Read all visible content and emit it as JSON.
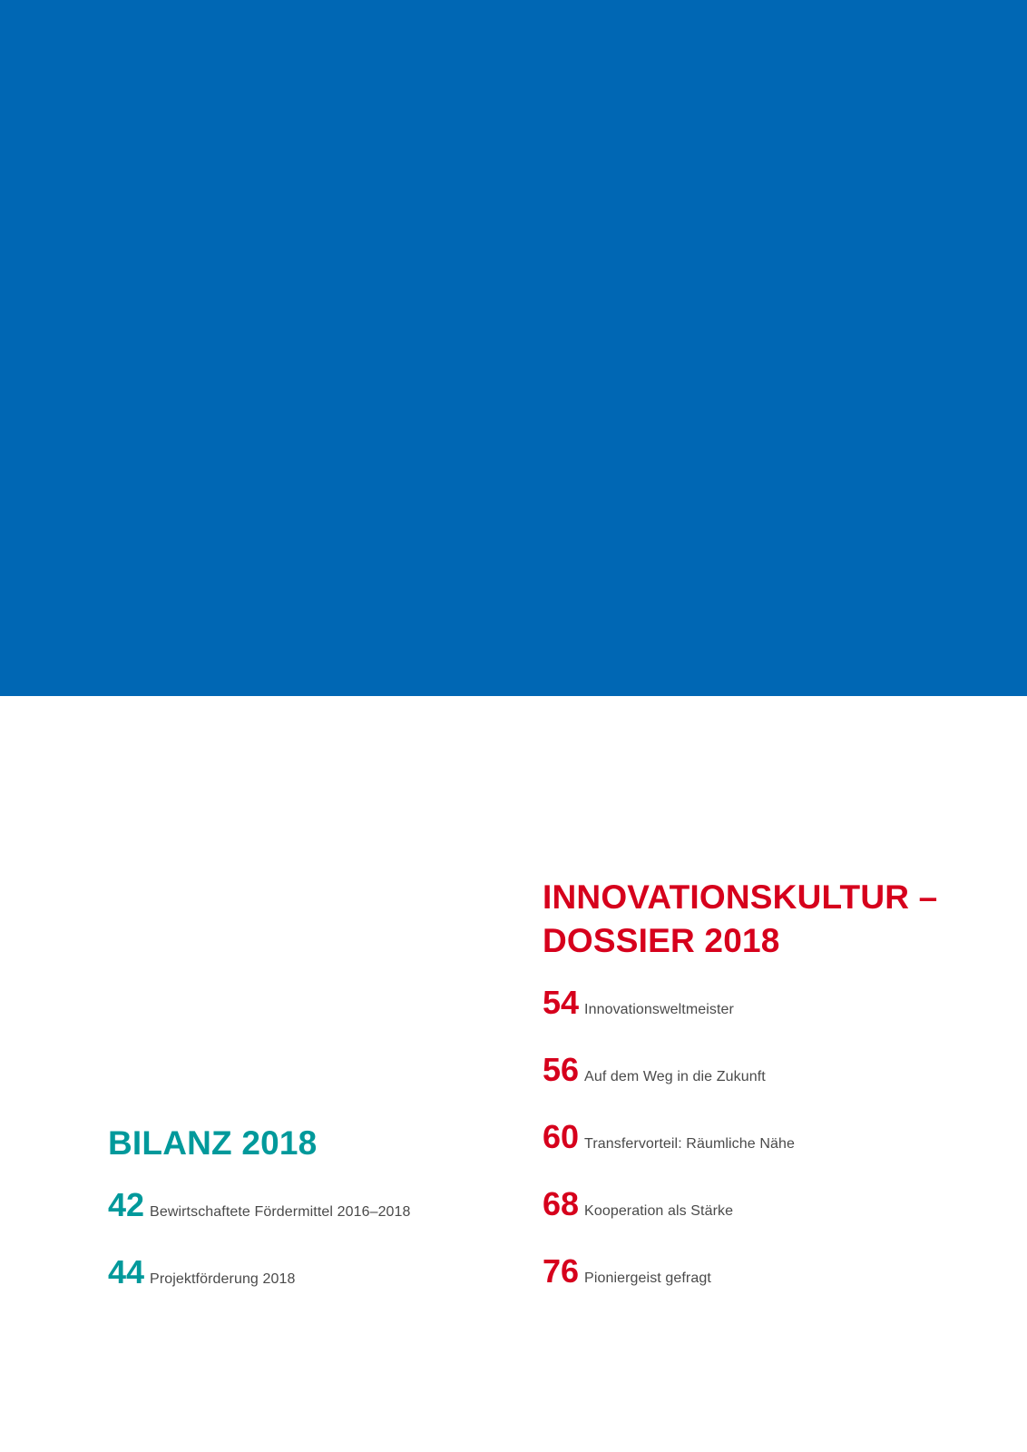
{
  "bilanz": {
    "title": "BILANZ 2018",
    "entries": [
      {
        "page": "42",
        "label": "Bewirtschaftete Fördermittel 2016–2018"
      },
      {
        "page": "44",
        "label": "Projektförderung 2018"
      }
    ]
  },
  "dossier": {
    "title_line1": "INNOVATIONSKULTUR –",
    "title_line2": "DOSSIER 2018",
    "entries": [
      {
        "page": "54",
        "label": "Innovationsweltmeister"
      },
      {
        "page": "56",
        "label": "Auf dem Weg in die Zukunft"
      },
      {
        "page": "60",
        "label": "Transfervorteil: Räumliche Nähe"
      },
      {
        "page": "68",
        "label": "Kooperation als Stärke"
      },
      {
        "page": "76",
        "label": "Pioniergeist gefragt"
      }
    ]
  },
  "colors": {
    "banner": "#0067b4",
    "bilanz_accent": "#00999b",
    "dossier_accent": "#d6001c",
    "text": "#4a4a4a"
  }
}
